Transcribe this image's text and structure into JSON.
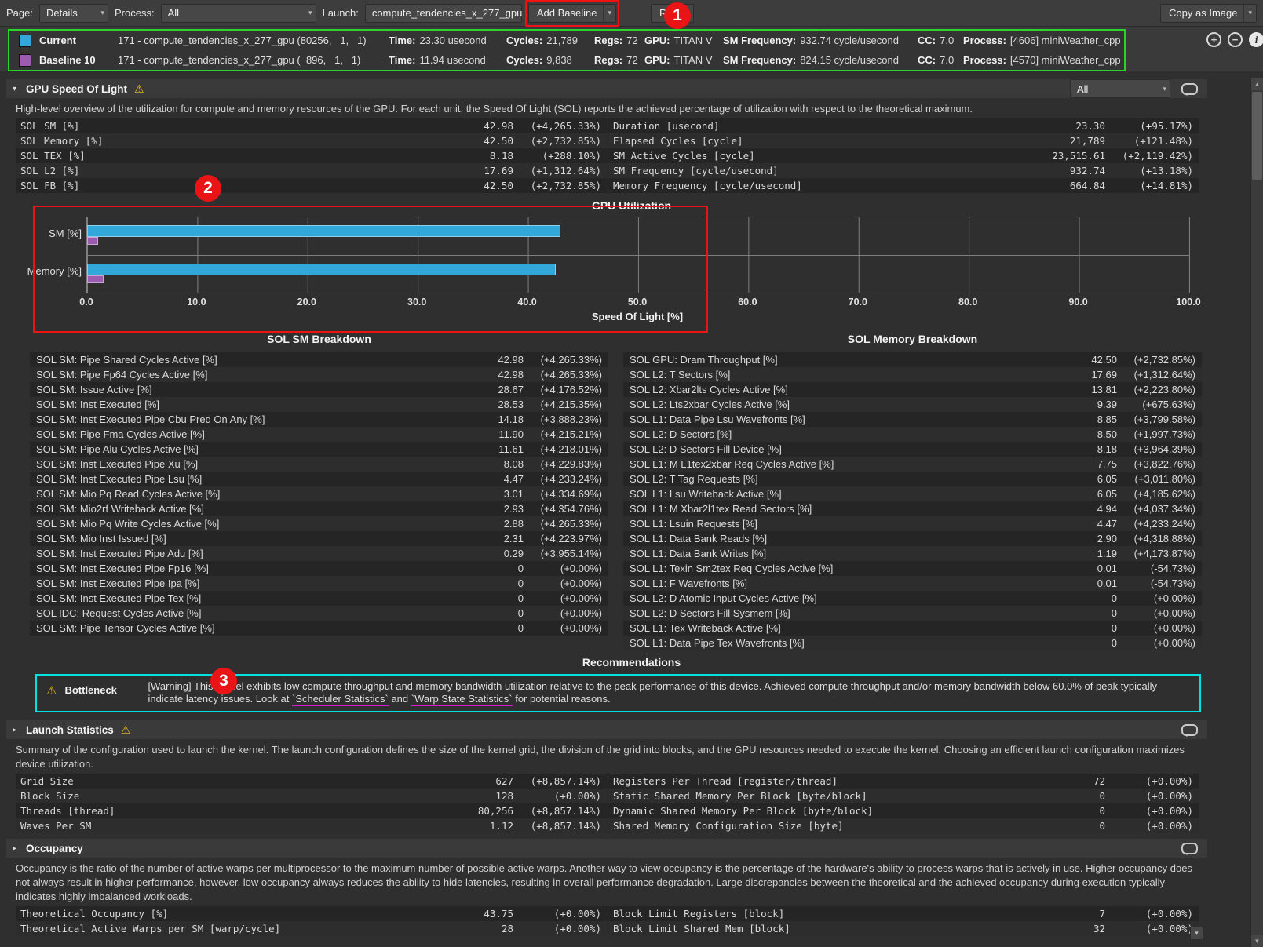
{
  "toolbar": {
    "page_label": "Page:",
    "page_value": "Details",
    "process_label": "Process:",
    "process_value": "All",
    "launch_label": "Launch:",
    "launch_value": "compute_tendencies_x_277_gpu",
    "add_baseline_label": "Add Baseline",
    "rules_label": "Rules",
    "copy_as_image_label": "Copy as Image"
  },
  "baselines": {
    "labels": {
      "time": "Time:",
      "cycles": "Cycles:",
      "regs": "Regs:",
      "gpu": "GPU:",
      "sm_freq": "SM Frequency:",
      "cc": "CC:",
      "process": "Process:"
    },
    "rows": [
      {
        "color": "#31a8d9",
        "name": "Current",
        "kernel": "171 - compute_tendencies_x_277_gpu (80256,   1,   1)",
        "time": "23.30 usecond",
        "cycles": "21,789",
        "regs": "72",
        "gpu": "TITAN V",
        "sm_freq": "932.74 cycle/usecond",
        "cc": "7.0",
        "process": "[4606] miniWeather_cpp"
      },
      {
        "color": "#9d5bb0",
        "name": "Baseline 10",
        "kernel": "171 - compute_tendencies_x_277_gpu (  896,   1,   1)",
        "time": "11.94 usecond",
        "cycles": "9,838",
        "regs": "72",
        "gpu": "TITAN V",
        "sm_freq": "824.15 cycle/usecond",
        "cc": "7.0",
        "process": "[4570] miniWeather_cpp"
      }
    ]
  },
  "sol": {
    "title": "GPU Speed Of Light",
    "filter_value": "All",
    "description": "High-level overview of the utilization for compute and memory resources of the GPU. For each unit, the Speed Of Light (SOL) reports the achieved percentage of utilization with respect to the theoretical maximum.",
    "metrics_left": [
      {
        "name": "SOL SM [%]",
        "value": "42.98",
        "delta": "(+4,265.33%)"
      },
      {
        "name": "SOL Memory [%]",
        "value": "42.50",
        "delta": "(+2,732.85%)"
      },
      {
        "name": "SOL TEX [%]",
        "value": "8.18",
        "delta": "(+288.10%)"
      },
      {
        "name": "SOL L2 [%]",
        "value": "17.69",
        "delta": "(+1,312.64%)"
      },
      {
        "name": "SOL FB [%]",
        "value": "42.50",
        "delta": "(+2,732.85%)"
      }
    ],
    "metrics_right": [
      {
        "name": "Duration [usecond]",
        "value": "23.30",
        "delta": "(+95.17%)"
      },
      {
        "name": "Elapsed Cycles [cycle]",
        "value": "21,789",
        "delta": "(+121.48%)"
      },
      {
        "name": "SM Active Cycles [cycle]",
        "value": "23,515.61",
        "delta": "(+2,119.42%)"
      },
      {
        "name": "SM Frequency [cycle/usecond]",
        "value": "932.74",
        "delta": "(+13.18%)"
      },
      {
        "name": "Memory Frequency [cycle/usecond]",
        "value": "664.84",
        "delta": "(+14.81%)"
      }
    ]
  },
  "chart_data": {
    "type": "bar",
    "orientation": "horizontal",
    "title": "GPU Utilization",
    "categories": [
      "SM [%]",
      "Memory [%]"
    ],
    "series": [
      {
        "name": "Current",
        "color": "#31a8d9",
        "values": [
          42.98,
          42.5
        ]
      },
      {
        "name": "Baseline 10",
        "color": "#9d5bb0",
        "values": [
          0.98,
          1.5
        ]
      }
    ],
    "xlabel": "Speed Of Light [%]",
    "xlim": [
      0,
      100
    ],
    "xticks": [
      "0.0",
      "10.0",
      "20.0",
      "30.0",
      "40.0",
      "50.0",
      "60.0",
      "70.0",
      "80.0",
      "90.0",
      "100.0"
    ],
    "grid": true
  },
  "breakdowns": {
    "sm_title": "SOL SM Breakdown",
    "mem_title": "SOL Memory Breakdown",
    "sm_rows": [
      {
        "name": "SOL SM: Pipe Shared Cycles Active [%]",
        "value": "42.98",
        "delta": "(+4,265.33%)"
      },
      {
        "name": "SOL SM: Pipe Fp64 Cycles Active [%]",
        "value": "42.98",
        "delta": "(+4,265.33%)"
      },
      {
        "name": "SOL SM: Issue Active [%]",
        "value": "28.67",
        "delta": "(+4,176.52%)"
      },
      {
        "name": "SOL SM: Inst Executed [%]",
        "value": "28.53",
        "delta": "(+4,215.35%)"
      },
      {
        "name": "SOL SM: Inst Executed Pipe Cbu Pred On Any [%]",
        "value": "14.18",
        "delta": "(+3,888.23%)"
      },
      {
        "name": "SOL SM: Pipe Fma Cycles Active [%]",
        "value": "11.90",
        "delta": "(+4,215.21%)"
      },
      {
        "name": "SOL SM: Pipe Alu Cycles Active [%]",
        "value": "11.61",
        "delta": "(+4,218.01%)"
      },
      {
        "name": "SOL SM: Inst Executed Pipe Xu [%]",
        "value": "8.08",
        "delta": "(+4,229.83%)"
      },
      {
        "name": "SOL SM: Inst Executed Pipe Lsu [%]",
        "value": "4.47",
        "delta": "(+4,233.24%)"
      },
      {
        "name": "SOL SM: Mio Pq Read Cycles Active [%]",
        "value": "3.01",
        "delta": "(+4,334.69%)"
      },
      {
        "name": "SOL SM: Mio2rf Writeback Active [%]",
        "value": "2.93",
        "delta": "(+4,354.76%)"
      },
      {
        "name": "SOL SM: Mio Pq Write Cycles Active [%]",
        "value": "2.88",
        "delta": "(+4,265.33%)"
      },
      {
        "name": "SOL SM: Mio Inst Issued [%]",
        "value": "2.31",
        "delta": "(+4,223.97%)"
      },
      {
        "name": "SOL SM: Inst Executed Pipe Adu [%]",
        "value": "0.29",
        "delta": "(+3,955.14%)"
      },
      {
        "name": "SOL SM: Inst Executed Pipe Fp16 [%]",
        "value": "0",
        "delta": "(+0.00%)"
      },
      {
        "name": "SOL SM: Inst Executed Pipe Ipa [%]",
        "value": "0",
        "delta": "(+0.00%)"
      },
      {
        "name": "SOL SM: Inst Executed Pipe Tex [%]",
        "value": "0",
        "delta": "(+0.00%)"
      },
      {
        "name": "SOL IDC: Request Cycles Active [%]",
        "value": "0",
        "delta": "(+0.00%)"
      },
      {
        "name": "SOL SM: Pipe Tensor Cycles Active [%]",
        "value": "0",
        "delta": "(+0.00%)"
      }
    ],
    "mem_rows": [
      {
        "name": "SOL GPU: Dram Throughput [%]",
        "value": "42.50",
        "delta": "(+2,732.85%)"
      },
      {
        "name": "SOL L2: T Sectors [%]",
        "value": "17.69",
        "delta": "(+1,312.64%)"
      },
      {
        "name": "SOL L2: Xbar2lts Cycles Active [%]",
        "value": "13.81",
        "delta": "(+2,223.80%)"
      },
      {
        "name": "SOL L2: Lts2xbar Cycles Active [%]",
        "value": "9.39",
        "delta": "(+675.63%)"
      },
      {
        "name": "SOL L1: Data Pipe Lsu Wavefronts [%]",
        "value": "8.85",
        "delta": "(+3,799.58%)"
      },
      {
        "name": "SOL L2: D Sectors [%]",
        "value": "8.50",
        "delta": "(+1,997.73%)"
      },
      {
        "name": "SOL L2: D Sectors Fill Device [%]",
        "value": "8.18",
        "delta": "(+3,964.39%)"
      },
      {
        "name": "SOL L1: M L1tex2xbar Req Cycles Active [%]",
        "value": "7.75",
        "delta": "(+3,822.76%)"
      },
      {
        "name": "SOL L2: T Tag Requests [%]",
        "value": "6.05",
        "delta": "(+3,011.80%)"
      },
      {
        "name": "SOL L1: Lsu Writeback Active [%]",
        "value": "6.05",
        "delta": "(+4,185.62%)"
      },
      {
        "name": "SOL L1: M Xbar2l1tex Read Sectors [%]",
        "value": "4.94",
        "delta": "(+4,037.34%)"
      },
      {
        "name": "SOL L1: Lsuin Requests [%]",
        "value": "4.47",
        "delta": "(+4,233.24%)"
      },
      {
        "name": "SOL L1: Data Bank Reads [%]",
        "value": "2.90",
        "delta": "(+4,318.88%)"
      },
      {
        "name": "SOL L1: Data Bank Writes [%]",
        "value": "1.19",
        "delta": "(+4,173.87%)"
      },
      {
        "name": "SOL L1: Texin Sm2tex Req Cycles Active [%]",
        "value": "0.01",
        "delta": "(-54.73%)"
      },
      {
        "name": "SOL L1: F Wavefronts [%]",
        "value": "0.01",
        "delta": "(-54.73%)"
      },
      {
        "name": "SOL L2: D Atomic Input Cycles Active [%]",
        "value": "0",
        "delta": "(+0.00%)"
      },
      {
        "name": "SOL L2: D Sectors Fill Sysmem [%]",
        "value": "0",
        "delta": "(+0.00%)"
      },
      {
        "name": "SOL L1: Tex Writeback Active [%]",
        "value": "0",
        "delta": "(+0.00%)"
      },
      {
        "name": "SOL L1: Data Pipe Tex Wavefronts [%]",
        "value": "0",
        "delta": "(+0.00%)"
      }
    ]
  },
  "recommendations": {
    "title": "Recommendations",
    "bottleneck_label": "Bottleneck",
    "warning_pre": "[Warning] This kernel exhibits low compute throughput and memory bandwidth utilization relative to the peak performance of this device. Achieved compute throughput and/or memory bandwidth below 60.0% of peak typically indicate latency issues. Look at ",
    "link_scheduler": "`Scheduler Statistics`",
    "warning_mid": " and ",
    "link_warp": "`Warp State Statistics`",
    "warning_post": " for potential reasons."
  },
  "launch": {
    "title": "Launch Statistics",
    "description": "Summary of the configuration used to launch the kernel. The launch configuration defines the size of the kernel grid, the division of the grid into blocks, and the GPU resources needed to execute the kernel. Choosing an efficient launch configuration maximizes device utilization.",
    "left_rows": [
      {
        "name": "Grid Size",
        "value": "627",
        "delta": "(+8,857.14%)"
      },
      {
        "name": "Block Size",
        "value": "128",
        "delta": "(+0.00%)"
      },
      {
        "name": "Threads [thread]",
        "value": "80,256",
        "delta": "(+8,857.14%)"
      },
      {
        "name": "Waves Per SM",
        "value": "1.12",
        "delta": "(+8,857.14%)"
      }
    ],
    "right_rows": [
      {
        "name": "Registers Per Thread [register/thread]",
        "value": "72",
        "delta": "(+0.00%)"
      },
      {
        "name": "Static Shared Memory Per Block [byte/block]",
        "value": "0",
        "delta": "(+0.00%)"
      },
      {
        "name": "Dynamic Shared Memory Per Block [byte/block]",
        "value": "0",
        "delta": "(+0.00%)"
      },
      {
        "name": "Shared Memory Configuration Size [byte]",
        "value": "0",
        "delta": "(+0.00%)"
      }
    ]
  },
  "occupancy": {
    "title": "Occupancy",
    "description": "Occupancy is the ratio of the number of active warps per multiprocessor to the maximum number of possible active warps. Another way to view occupancy is the percentage of the hardware's ability to process warps that is actively in use. Higher occupancy does not always result in higher performance, however, low occupancy always reduces the ability to hide latencies, resulting in overall performance degradation. Large discrepancies between the theoretical and the achieved occupancy during execution typically indicates highly imbalanced workloads.",
    "left_rows": [
      {
        "name": "Theoretical Occupancy [%]",
        "value": "43.75",
        "delta": "(+0.00%)"
      },
      {
        "name": "Theoretical Active Warps per SM [warp/cycle]",
        "value": "28",
        "delta": "(+0.00%)"
      }
    ],
    "right_rows": [
      {
        "name": "Block Limit Registers [block]",
        "value": "7",
        "delta": "(+0.00%)"
      },
      {
        "name": "Block Limit Shared Mem [block]",
        "value": "32",
        "delta": "(+0.00%)"
      }
    ]
  },
  "annotations": {
    "n1": "1",
    "n2": "2",
    "n3": "3"
  }
}
